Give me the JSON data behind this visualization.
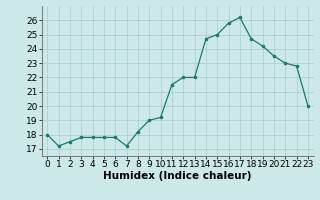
{
  "x": [
    0,
    1,
    2,
    3,
    4,
    5,
    6,
    7,
    8,
    9,
    10,
    11,
    12,
    13,
    14,
    15,
    16,
    17,
    18,
    19,
    20,
    21,
    22,
    23
  ],
  "y": [
    18,
    17.2,
    17.5,
    17.8,
    17.8,
    17.8,
    17.8,
    17.2,
    18.2,
    19,
    19.2,
    21.5,
    22,
    22,
    24.7,
    25,
    25.8,
    26.2,
    24.7,
    24.2,
    23.5,
    23,
    22.8,
    20
  ],
  "line_color": "#1a7a6e",
  "marker_color": "#1a7a6e",
  "bg_color": "#cce8e8",
  "grid_color": "#aacccc",
  "xlabel": "Humidex (Indice chaleur)",
  "ylim": [
    16.5,
    27
  ],
  "xlim": [
    -0.5,
    23.5
  ],
  "yticks": [
    17,
    18,
    19,
    20,
    21,
    22,
    23,
    24,
    25,
    26
  ],
  "xticks": [
    0,
    1,
    2,
    3,
    4,
    5,
    6,
    7,
    8,
    9,
    10,
    11,
    12,
    13,
    14,
    15,
    16,
    17,
    18,
    19,
    20,
    21,
    22,
    23
  ],
  "xlabel_fontsize": 7.5,
  "tick_fontsize": 6.5
}
